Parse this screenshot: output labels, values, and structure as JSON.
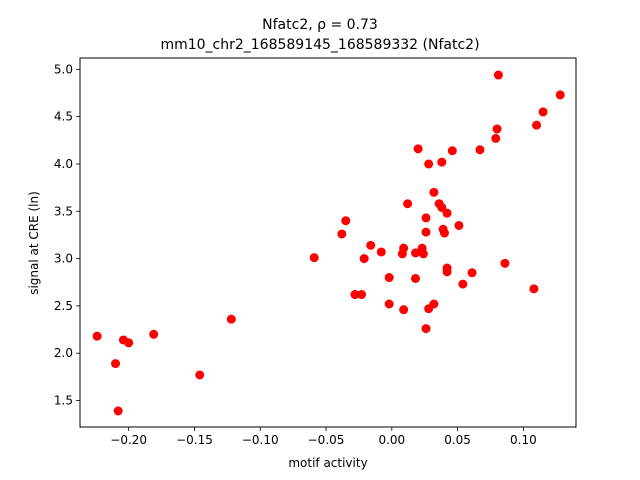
{
  "chart_data": {
    "type": "scatter",
    "title_line1": "Nfatc2, ρ = 0.73",
    "title_line2": "mm10_chr2_168589145_168589332 (Nfatc2)",
    "xlabel": "motif activity",
    "ylabel": "signal at CRE (ln)",
    "xlim": [
      -0.237,
      0.14
    ],
    "ylim": [
      1.22,
      5.12
    ],
    "xticks": [
      -0.2,
      -0.15,
      -0.1,
      -0.05,
      0.0,
      0.05,
      0.1
    ],
    "xtick_labels": [
      "−0.20",
      "−0.15",
      "−0.10",
      "−0.05",
      "0.00",
      "0.05",
      "0.10"
    ],
    "yticks": [
      1.5,
      2.0,
      2.5,
      3.0,
      3.5,
      4.0,
      4.5,
      5.0
    ],
    "ytick_labels": [
      "1.5",
      "2.0",
      "2.5",
      "3.0",
      "3.5",
      "4.0",
      "4.5",
      "5.0"
    ],
    "grid": false,
    "marker_color": "#ff0000",
    "points": [
      [
        -0.224,
        2.18
      ],
      [
        -0.21,
        1.89
      ],
      [
        -0.208,
        1.39
      ],
      [
        -0.204,
        2.14
      ],
      [
        -0.2,
        2.11
      ],
      [
        -0.181,
        2.2
      ],
      [
        -0.146,
        1.77
      ],
      [
        -0.122,
        2.36
      ],
      [
        -0.059,
        3.01
      ],
      [
        -0.038,
        3.26
      ],
      [
        -0.035,
        3.4
      ],
      [
        -0.028,
        2.62
      ],
      [
        -0.023,
        2.62
      ],
      [
        -0.021,
        3.0
      ],
      [
        -0.016,
        3.14
      ],
      [
        -0.008,
        3.07
      ],
      [
        -0.002,
        2.8
      ],
      [
        -0.002,
        2.52
      ],
      [
        0.008,
        3.05
      ],
      [
        0.009,
        3.11
      ],
      [
        0.009,
        2.46
      ],
      [
        0.012,
        3.58
      ],
      [
        0.018,
        3.06
      ],
      [
        0.018,
        2.79
      ],
      [
        0.02,
        4.16
      ],
      [
        0.023,
        3.11
      ],
      [
        0.024,
        3.05
      ],
      [
        0.026,
        3.28
      ],
      [
        0.026,
        3.43
      ],
      [
        0.026,
        2.26
      ],
      [
        0.028,
        4.0
      ],
      [
        0.028,
        2.47
      ],
      [
        0.032,
        3.7
      ],
      [
        0.032,
        2.52
      ],
      [
        0.036,
        3.58
      ],
      [
        0.038,
        3.54
      ],
      [
        0.038,
        4.02
      ],
      [
        0.039,
        3.31
      ],
      [
        0.04,
        3.27
      ],
      [
        0.042,
        3.48
      ],
      [
        0.042,
        2.9
      ],
      [
        0.042,
        2.86
      ],
      [
        0.046,
        4.14
      ],
      [
        0.051,
        3.35
      ],
      [
        0.054,
        2.73
      ],
      [
        0.061,
        2.85
      ],
      [
        0.067,
        4.15
      ],
      [
        0.079,
        4.27
      ],
      [
        0.08,
        4.37
      ],
      [
        0.081,
        4.94
      ],
      [
        0.086,
        2.95
      ],
      [
        0.108,
        2.68
      ],
      [
        0.11,
        4.41
      ],
      [
        0.115,
        4.55
      ],
      [
        0.128,
        4.73
      ]
    ]
  }
}
